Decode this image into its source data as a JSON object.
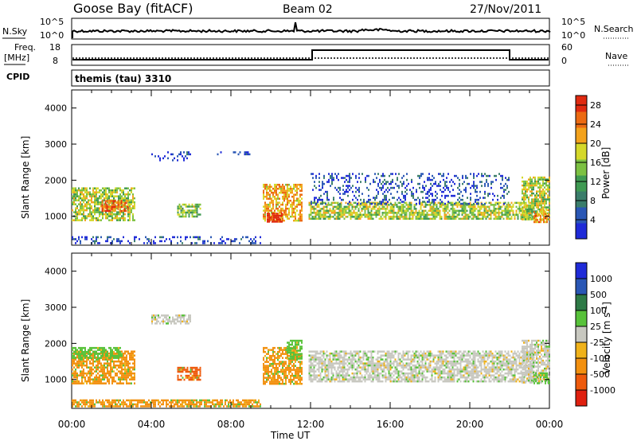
{
  "header": {
    "station": "Goose Bay (fitACF)",
    "beam": "Beam 02",
    "date": "27/Nov/2011"
  },
  "noise_panel": {
    "left_label": "N.Sky",
    "left_ticks": [
      "10^5",
      "10^0"
    ],
    "right_ticks": [
      "10^5",
      "10^0"
    ],
    "right_label": "N.Search"
  },
  "freq_panel": {
    "left_label_1": "Freq.",
    "left_label_2": "[MHz]",
    "left_ticks": [
      "18",
      "8"
    ],
    "right_ticks": [
      "60",
      "0"
    ],
    "right_label": "Nave"
  },
  "cpid_panel": {
    "label": "CPID",
    "value": "themis (tau) 3310"
  },
  "colors": {
    "power": [
      "#1f2bd8",
      "#2a57b5",
      "#3a7d6a",
      "#3f9a52",
      "#7cc142",
      "#d5d82a",
      "#f3a21c",
      "#ec6a12",
      "#e02a10"
    ],
    "velocity": [
      "#1f2bd8",
      "#2a57b5",
      "#2e7a46",
      "#58c23a",
      "#c8c8c0",
      "#f0b21a",
      "#f2900f",
      "#ee5a0c",
      "#e0200f"
    ],
    "ground": "#c8c8c0"
  },
  "chart_data": [
    {
      "type": "heatmap",
      "panel": "power",
      "ylabel": "Slant Range [km]",
      "ylim": [
        200,
        4500
      ],
      "yticks": [
        1000,
        2000,
        3000,
        4000
      ],
      "x": "time UT, hours since 00:00",
      "xlim": [
        0,
        24
      ],
      "colorbar": {
        "label": "Power [dB]",
        "range": [
          0,
          30
        ],
        "ticks": [
          "4",
          "8",
          "12",
          "16",
          "20",
          "24",
          "28"
        ]
      },
      "regions": [
        {
          "t": [
            0.0,
            3.2
          ],
          "r": [
            900,
            1800
          ],
          "level": 0.55
        },
        {
          "t": [
            1.5,
            2.8
          ],
          "r": [
            1150,
            1450
          ],
          "level": 0.85
        },
        {
          "t": [
            5.3,
            6.5
          ],
          "r": [
            1000,
            1350
          ],
          "level": 0.5
        },
        {
          "t": [
            4.0,
            6.0
          ],
          "r": [
            2550,
            2800
          ],
          "level": 0.1
        },
        {
          "t": [
            7.3,
            9.0
          ],
          "r": [
            2700,
            2800
          ],
          "level": 0.1
        },
        {
          "t": [
            9.6,
            11.6
          ],
          "r": [
            900,
            1900
          ],
          "level": 0.7
        },
        {
          "t": [
            9.8,
            10.6
          ],
          "r": [
            850,
            1100
          ],
          "level": 0.95
        },
        {
          "t": [
            11.9,
            23.2
          ],
          "r": [
            950,
            1400
          ],
          "level": 0.55
        },
        {
          "t": [
            12.0,
            22.0
          ],
          "r": [
            1350,
            2200
          ],
          "level": 0.15
        },
        {
          "t": [
            22.6,
            24.0
          ],
          "r": [
            900,
            2100
          ],
          "level": 0.55
        },
        {
          "t": [
            23.2,
            24.0
          ],
          "r": [
            850,
            1200
          ],
          "level": 0.75
        },
        {
          "t": [
            0.0,
            9.5
          ],
          "r": [
            250,
            450
          ],
          "level": 0.1
        }
      ]
    },
    {
      "type": "heatmap",
      "panel": "velocity",
      "ylabel": "Slant Range [km]",
      "ylim": [
        200,
        4500
      ],
      "yticks": [
        1000,
        2000,
        3000,
        4000
      ],
      "x": "time UT, hours since 00:00",
      "xlim": [
        0,
        24
      ],
      "colorbar": {
        "label": "Velocity [m s^-1]",
        "ticks": [
          "1000",
          "500",
          "100",
          "25",
          "-25",
          "-100",
          "-500",
          "-1000"
        ]
      },
      "regions": [
        {
          "t": [
            0.0,
            3.2
          ],
          "r": [
            900,
            1800
          ],
          "class": "-100"
        },
        {
          "t": [
            0.0,
            2.5
          ],
          "r": [
            1600,
            1900
          ],
          "class": "100"
        },
        {
          "t": [
            5.3,
            6.5
          ],
          "r": [
            1000,
            1350
          ],
          "class": "-500"
        },
        {
          "t": [
            4.0,
            6.0
          ],
          "r": [
            2550,
            2800
          ],
          "class": "25"
        },
        {
          "t": [
            9.6,
            11.6
          ],
          "r": [
            900,
            1900
          ],
          "class": "-100"
        },
        {
          "t": [
            10.8,
            11.6
          ],
          "r": [
            1600,
            2100
          ],
          "class": "100"
        },
        {
          "t": [
            11.9,
            23.2
          ],
          "r": [
            950,
            1800
          ],
          "class": "25"
        },
        {
          "t": [
            22.6,
            24.0
          ],
          "r": [
            900,
            2100
          ],
          "class": "25"
        },
        {
          "t": [
            23.2,
            24.0
          ],
          "r": [
            900,
            1200
          ],
          "class": "100"
        },
        {
          "t": [
            0.0,
            9.5
          ],
          "r": [
            250,
            450
          ],
          "class": "-100"
        }
      ]
    }
  ],
  "x_axis": {
    "tick_labels": [
      "00:00",
      "04:00",
      "08:00",
      "12:00",
      "16:00",
      "20:00",
      "00:00"
    ],
    "label": "Time UT"
  }
}
